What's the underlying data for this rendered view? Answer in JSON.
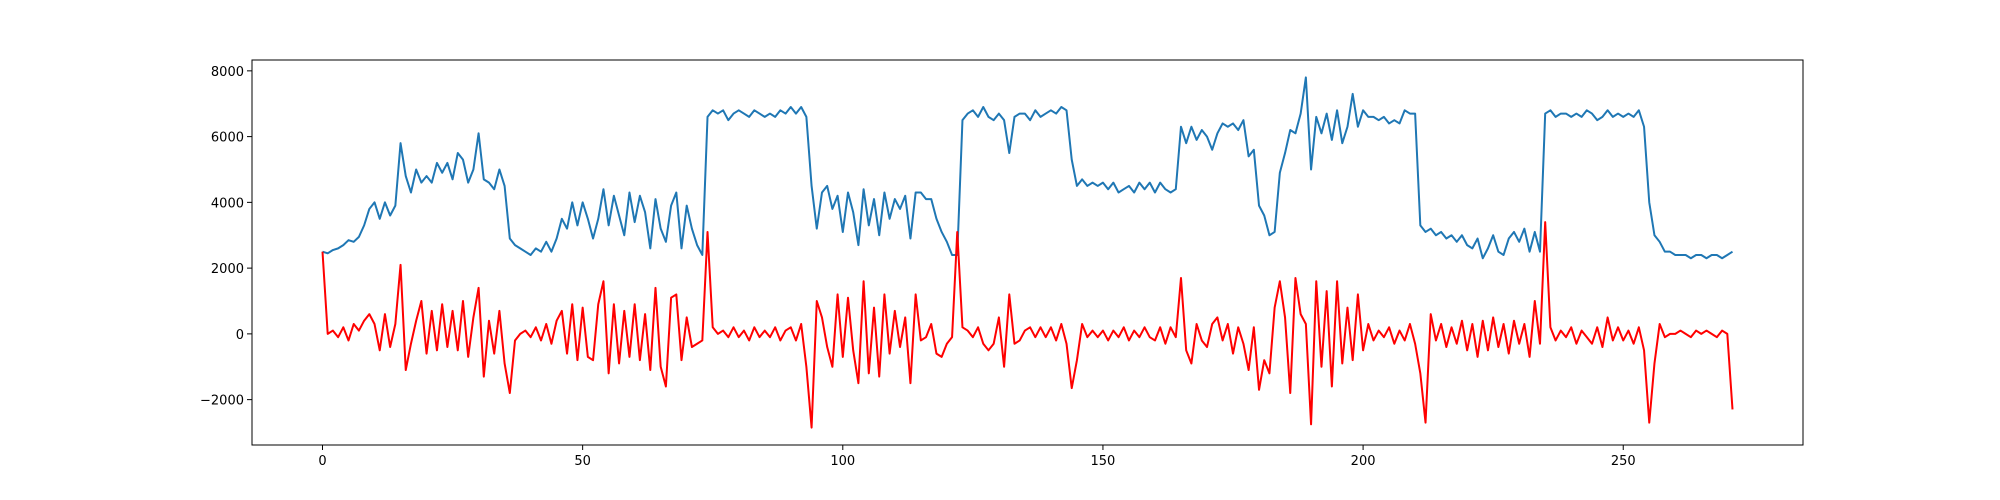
{
  "chart_data": {
    "type": "line",
    "x": [
      0,
      1,
      2,
      3,
      4,
      5,
      6,
      7,
      8,
      9,
      10,
      11,
      12,
      13,
      14,
      15,
      16,
      17,
      18,
      19,
      20,
      21,
      22,
      23,
      24,
      25,
      26,
      27,
      28,
      29,
      30,
      31,
      32,
      33,
      34,
      35,
      36,
      37,
      38,
      39,
      40,
      41,
      42,
      43,
      44,
      45,
      46,
      47,
      48,
      49,
      50,
      51,
      52,
      53,
      54,
      55,
      56,
      57,
      58,
      59,
      60,
      61,
      62,
      63,
      64,
      65,
      66,
      67,
      68,
      69,
      70,
      71,
      72,
      73,
      74,
      75,
      76,
      77,
      78,
      79,
      80,
      81,
      82,
      83,
      84,
      85,
      86,
      87,
      88,
      89,
      90,
      91,
      92,
      93,
      94,
      95,
      96,
      97,
      98,
      99,
      100,
      101,
      102,
      103,
      104,
      105,
      106,
      107,
      108,
      109,
      110,
      111,
      112,
      113,
      114,
      115,
      116,
      117,
      118,
      119,
      120,
      121,
      122,
      123,
      124,
      125,
      126,
      127,
      128,
      129,
      130,
      131,
      132,
      133,
      134,
      135,
      136,
      137,
      138,
      139,
      140,
      141,
      142,
      143,
      144,
      145,
      146,
      147,
      148,
      149,
      150,
      151,
      152,
      153,
      154,
      155,
      156,
      157,
      158,
      159,
      160,
      161,
      162,
      163,
      164,
      165,
      166,
      167,
      168,
      169,
      170,
      171,
      172,
      173,
      174,
      175,
      176,
      177,
      178,
      179,
      180,
      181,
      182,
      183,
      184,
      185,
      186,
      187,
      188,
      189,
      190,
      191,
      192,
      193,
      194,
      195,
      196,
      197,
      198,
      199,
      200,
      201,
      202,
      203,
      204,
      205,
      206,
      207,
      208,
      209,
      210,
      211,
      212,
      213,
      214,
      215,
      216,
      217,
      218,
      219,
      220,
      221,
      222,
      223,
      224,
      225,
      226,
      227,
      228,
      229,
      230,
      231,
      232,
      233,
      234,
      235,
      236,
      237,
      238,
      239,
      240,
      241,
      242,
      243,
      244,
      245,
      246,
      247,
      248,
      249,
      250,
      251,
      252,
      253,
      254,
      255,
      256,
      257,
      258,
      259,
      260,
      261,
      262,
      263,
      264,
      265,
      266,
      267,
      268,
      269,
      270,
      271
    ],
    "series": [
      {
        "color": "#1f77b4",
        "values": [
          2500,
          2450,
          2550,
          2600,
          2700,
          2850,
          2800,
          2950,
          3300,
          3800,
          4000,
          3500,
          4000,
          3600,
          3900,
          5800,
          4800,
          4300,
          5000,
          4600,
          4800,
          4600,
          5200,
          4900,
          5200,
          4700,
          5500,
          5300,
          4600,
          5000,
          6100,
          4700,
          4600,
          4400,
          5000,
          4500,
          2900,
          2700,
          2600,
          2500,
          2400,
          2600,
          2500,
          2800,
          2500,
          2900,
          3500,
          3200,
          4000,
          3300,
          4000,
          3500,
          2900,
          3500,
          4400,
          3300,
          4200,
          3600,
          3000,
          4300,
          3400,
          4200,
          3700,
          2600,
          4100,
          3200,
          2800,
          3900,
          4300,
          2600,
          3900,
          3200,
          2700,
          2400,
          6600,
          6800,
          6700,
          6800,
          6500,
          6700,
          6800,
          6700,
          6600,
          6800,
          6700,
          6600,
          6700,
          6600,
          6800,
          6700,
          6900,
          6700,
          6900,
          6600,
          4500,
          3200,
          4300,
          4500,
          3800,
          4200,
          3100,
          4300,
          3700,
          2700,
          4400,
          3300,
          4100,
          3000,
          4300,
          3500,
          4100,
          3800,
          4200,
          2900,
          4300,
          4300,
          4100,
          4100,
          3500,
          3100,
          2800,
          2400,
          2400,
          6500,
          6700,
          6800,
          6600,
          6900,
          6600,
          6500,
          6700,
          6500,
          5500,
          6600,
          6700,
          6700,
          6500,
          6800,
          6600,
          6700,
          6800,
          6700,
          6900,
          6800,
          5300,
          4500,
          4700,
          4500,
          4600,
          4500,
          4600,
          4400,
          4600,
          4300,
          4400,
          4500,
          4300,
          4600,
          4400,
          4600,
          4300,
          4600,
          4400,
          4300,
          4400,
          6300,
          5800,
          6300,
          5900,
          6200,
          6000,
          5600,
          6100,
          6400,
          6300,
          6400,
          6200,
          6500,
          5400,
          5600,
          3900,
          3600,
          3000,
          3100,
          4900,
          5500,
          6200,
          6100,
          6700,
          7800,
          5000,
          6600,
          6100,
          6700,
          5900,
          6800,
          5800,
          6300,
          7300,
          6300,
          6800,
          6600,
          6600,
          6500,
          6600,
          6400,
          6500,
          6400,
          6800,
          6700,
          6700,
          3300,
          3100,
          3200,
          3000,
          3100,
          2900,
          3000,
          2800,
          3000,
          2700,
          2600,
          2900,
          2300,
          2600,
          3000,
          2500,
          2400,
          2900,
          3100,
          2800,
          3200,
          2500,
          3100,
          2500,
          6700,
          6800,
          6600,
          6700,
          6700,
          6600,
          6700,
          6600,
          6800,
          6700,
          6500,
          6600,
          6800,
          6600,
          6700,
          6600,
          6700,
          6600,
          6800,
          6300,
          4000,
          3000,
          2800,
          2500,
          2500,
          2400,
          2400,
          2400,
          2300,
          2400,
          2400,
          2300,
          2400,
          2400,
          2300,
          2400,
          2500
        ]
      },
      {
        "color": "red",
        "values": [
          2500,
          0,
          100,
          -100,
          200,
          -200,
          300,
          100,
          400,
          600,
          300,
          -500,
          600,
          -400,
          300,
          2100,
          -1100,
          -300,
          400,
          1000,
          -600,
          700,
          -500,
          900,
          -400,
          700,
          -500,
          1000,
          -700,
          500,
          1400,
          -1300,
          400,
          -600,
          700,
          -900,
          -1800,
          -200,
          0,
          100,
          -100,
          200,
          -200,
          300,
          -300,
          400,
          700,
          -600,
          900,
          -800,
          800,
          -700,
          -800,
          900,
          1600,
          -1200,
          900,
          -900,
          700,
          -700,
          900,
          -800,
          600,
          -1100,
          1400,
          -1000,
          -1600,
          1100,
          1200,
          -800,
          500,
          -400,
          -300,
          -200,
          3100,
          200,
          0,
          100,
          -100,
          200,
          -100,
          100,
          -200,
          200,
          -100,
          100,
          -100,
          200,
          -200,
          100,
          200,
          -200,
          300,
          -1000,
          -2850,
          1000,
          500,
          -400,
          -1000,
          1200,
          -700,
          1100,
          -500,
          -1500,
          1600,
          -1200,
          800,
          -1300,
          1200,
          -600,
          700,
          -400,
          500,
          -1500,
          1200,
          -200,
          -100,
          300,
          -600,
          -700,
          -300,
          -100,
          3100,
          200,
          100,
          -100,
          200,
          -300,
          -500,
          -300,
          500,
          -1000,
          1200,
          -300,
          -200,
          100,
          200,
          -100,
          200,
          -100,
          200,
          -200,
          300,
          -300,
          -1650,
          -800,
          300,
          -100,
          100,
          -100,
          100,
          -200,
          100,
          -100,
          200,
          -200,
          100,
          -100,
          200,
          -100,
          -200,
          200,
          -300,
          200,
          -100,
          1700,
          -500,
          -900,
          300,
          -200,
          -400,
          300,
          500,
          -200,
          300,
          -600,
          200,
          -300,
          -1100,
          200,
          -1700,
          -800,
          -1200,
          800,
          1600,
          500,
          -1800,
          1700,
          600,
          300,
          -2750,
          1600,
          -1000,
          1300,
          -1600,
          1600,
          -900,
          800,
          -800,
          1200,
          -500,
          300,
          -200,
          100,
          -100,
          200,
          -300,
          100,
          -200,
          300,
          -300,
          -1200,
          -2700,
          600,
          -200,
          300,
          -400,
          200,
          -300,
          400,
          -500,
          300,
          -700,
          400,
          -500,
          500,
          -400,
          300,
          -600,
          400,
          -300,
          300,
          -700,
          1000,
          -300,
          3400,
          200,
          -200,
          100,
          -100,
          200,
          -300,
          100,
          -100,
          -300,
          200,
          -400,
          500,
          -200,
          200,
          -200,
          100,
          -300,
          200,
          -500,
          -2700,
          -900,
          300,
          -100,
          0,
          0,
          100,
          0,
          -100,
          100,
          0,
          100,
          0,
          -100,
          100,
          0,
          -2300
        ]
      }
    ],
    "xlim": [
      -13.55,
      284.55
    ],
    "ylim": [
      -3380,
      8330
    ],
    "xticks": [
      0,
      50,
      100,
      150,
      200,
      250
    ],
    "yticks": [
      {
        "value": -2000,
        "label": "−2000"
      },
      0,
      2000,
      4000,
      6000,
      8000
    ]
  }
}
